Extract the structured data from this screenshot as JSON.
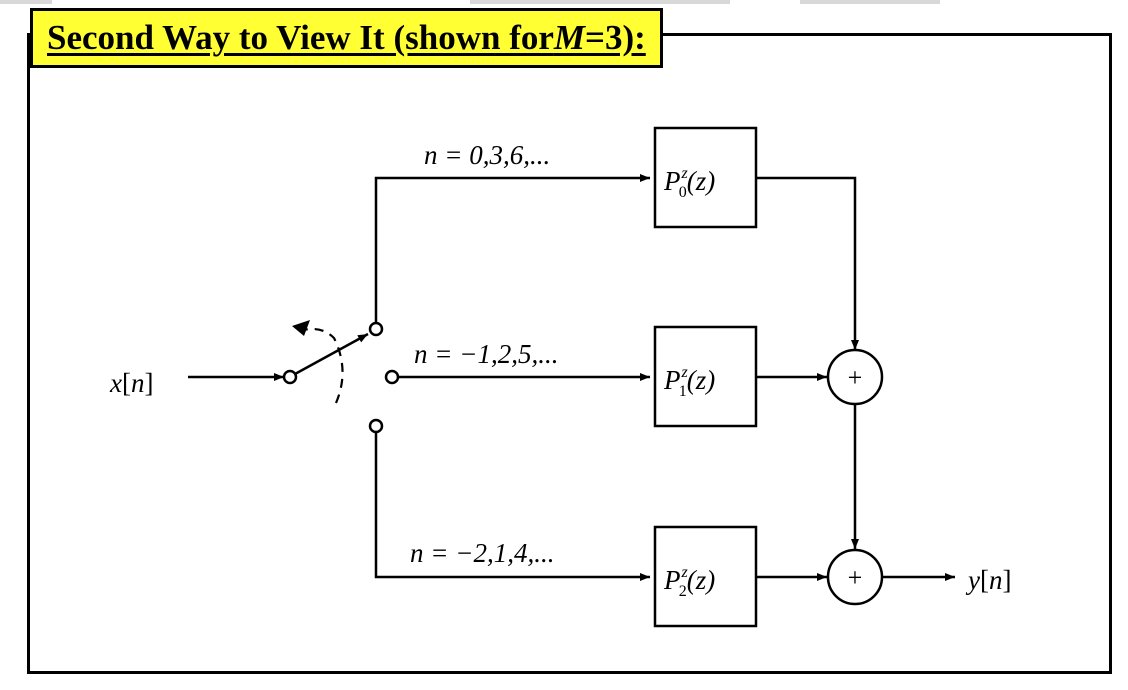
{
  "colors": {
    "title_bg": "#ffff33",
    "ink": "#000000",
    "background": "#ffffff"
  },
  "title": {
    "prefix": "Second Way to View It (shown for ",
    "var": "M",
    "suffix": "=3):"
  },
  "input": {
    "symbol": "x",
    "index": "n"
  },
  "output": {
    "symbol": "y",
    "index": "n"
  },
  "branches": [
    {
      "n_label": "n = 0,3,6,...",
      "filter": {
        "name": "P",
        "super": "z",
        "sub": "0",
        "arg": "(z)"
      }
    },
    {
      "n_label": "n = −1,2,5,...",
      "filter": {
        "name": "P",
        "super": "z",
        "sub": "1",
        "arg": "(z)"
      }
    },
    {
      "n_label": "n = −2,1,4,...",
      "filter": {
        "name": "P",
        "super": "z",
        "sub": "2",
        "arg": "(z)"
      }
    }
  ],
  "adders": [
    {
      "symbol": "+"
    },
    {
      "symbol": "+"
    }
  ]
}
